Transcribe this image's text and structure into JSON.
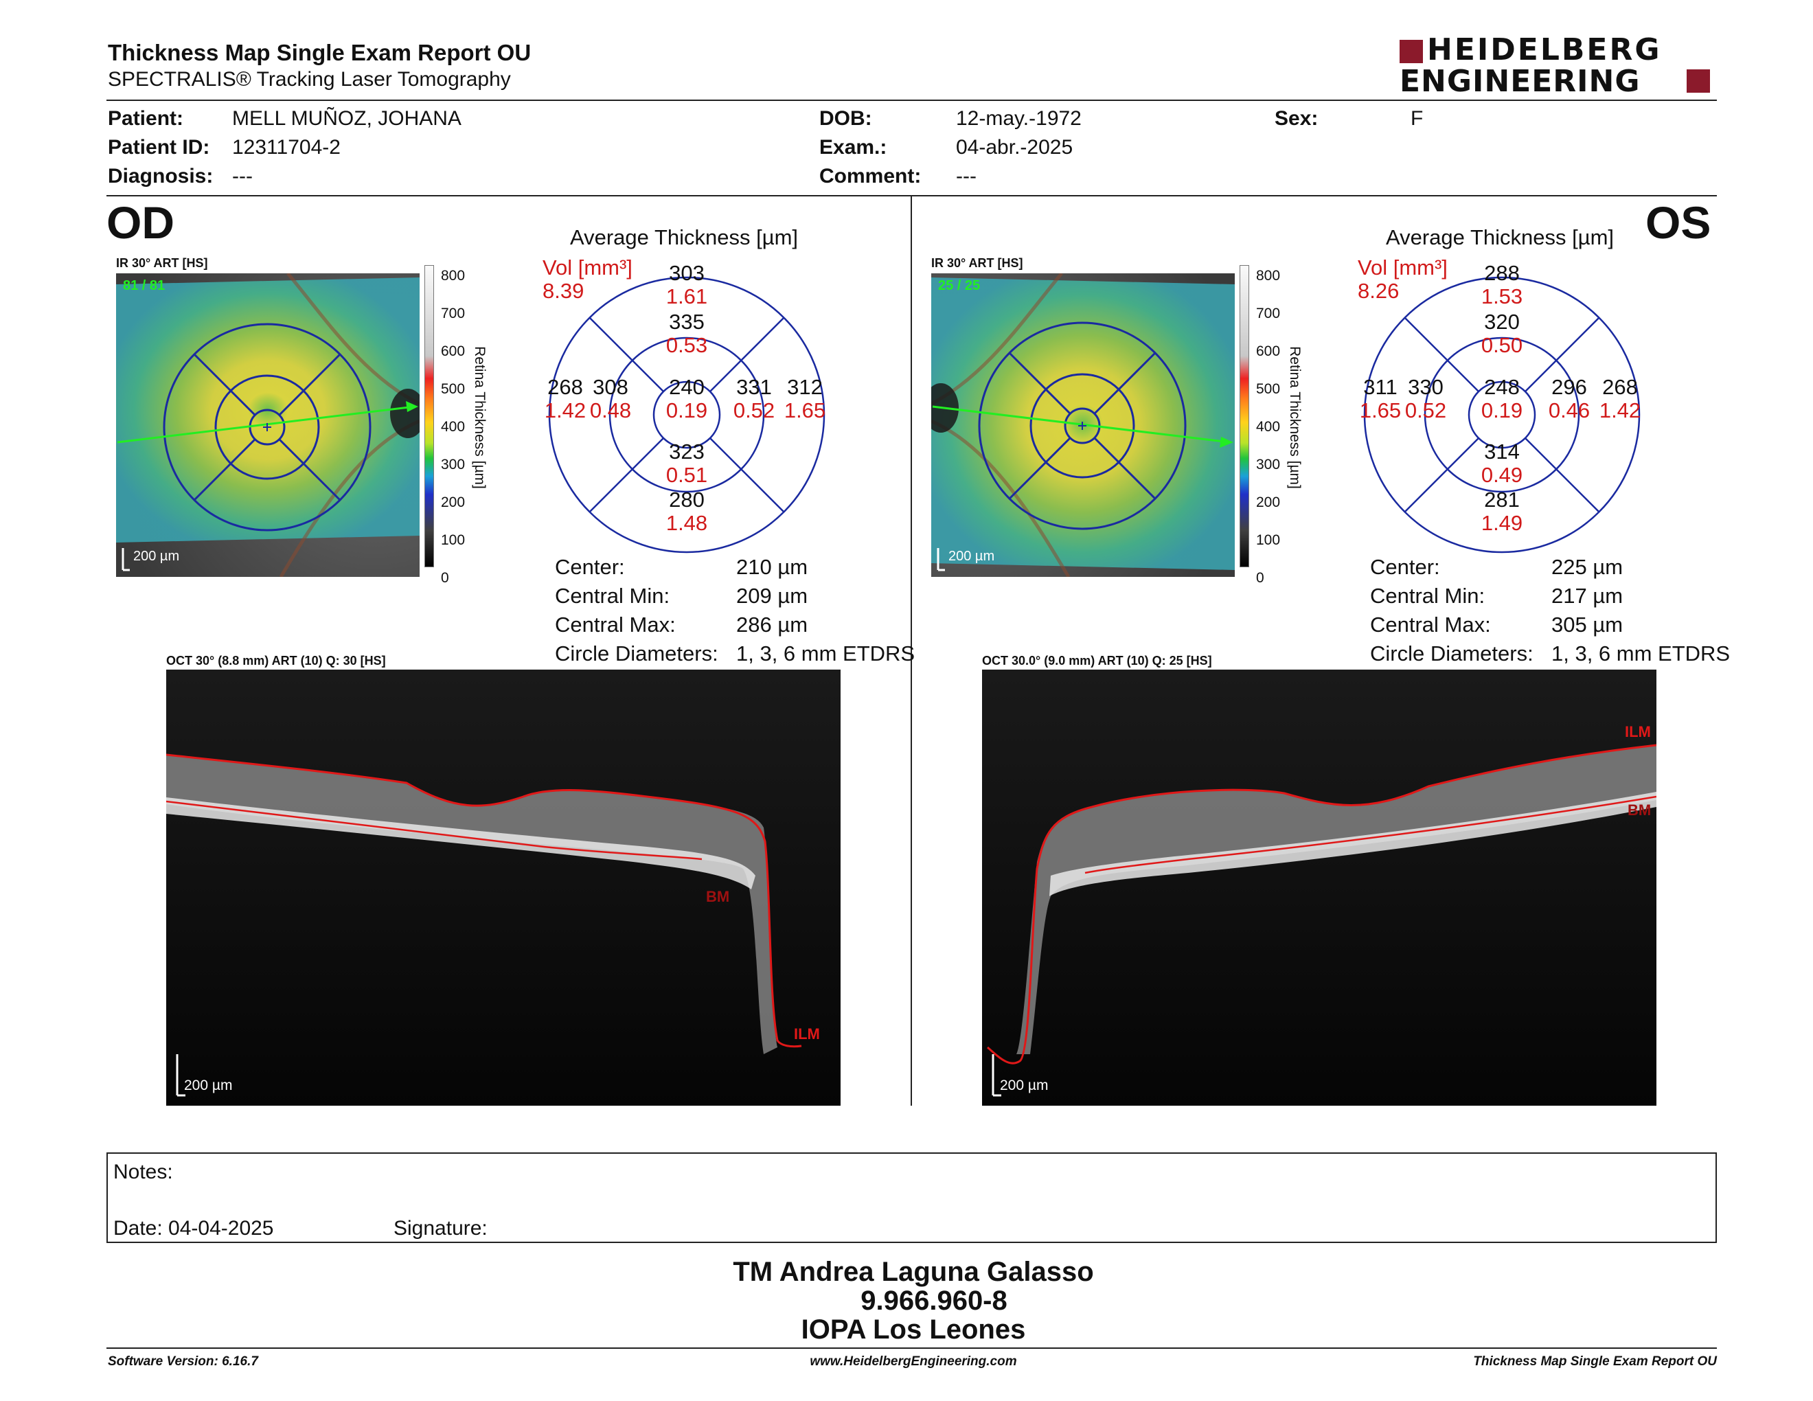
{
  "header": {
    "title": "Thickness Map Single Exam Report OU",
    "subtitle": "SPECTRALIS® Tracking Laser Tomography",
    "logo_line1": "HEIDELBERG",
    "logo_line2": "ENGINEERING",
    "brand_color": "#8b1a2b"
  },
  "patient": {
    "patient_label": "Patient:",
    "patient_value": "MELL MUÑOZ, JOHANA",
    "id_label": "Patient ID:",
    "id_value": "12311704-2",
    "diagnosis_label": "Diagnosis:",
    "diagnosis_value": "---",
    "dob_label": "DOB:",
    "dob_value": "12-may.-1972",
    "exam_label": "Exam.:",
    "exam_value": "04-abr.-2025",
    "comment_label": "Comment:",
    "comment_value": "---",
    "sex_label": "Sex:",
    "sex_value": "F"
  },
  "od": {
    "eye_label": "OD",
    "ir_caption": "IR 30° ART [HS]",
    "quality_text": "81 / 81",
    "map_scale": "200 µm",
    "avg_title": "Average Thickness [µm]",
    "vol_label": "Vol [mm³]",
    "vol_value": "8.39",
    "grid": {
      "center_t": "240",
      "center_v": "0.19",
      "inner_sup_t": "335",
      "inner_sup_v": "0.53",
      "inner_inf_t": "323",
      "inner_inf_v": "0.51",
      "inner_left_t": "308",
      "inner_left_v": "0.48",
      "inner_right_t": "331",
      "inner_right_v": "0.52",
      "outer_sup_t": "303",
      "outer_sup_v": "1.61",
      "outer_inf_t": "280",
      "outer_inf_v": "1.48",
      "outer_left_t": "268",
      "outer_left_v": "1.42",
      "outer_right_t": "312",
      "outer_right_v": "1.65"
    },
    "stats": {
      "center_label": "Center:",
      "center_value": "210 µm",
      "min_label": "Central Min:",
      "min_value": "209 µm",
      "max_label": "Central Max:",
      "max_value": "286 µm",
      "diam_label": "Circle Diameters:",
      "diam_value": "1, 3, 6 mm ETDRS"
    },
    "oct_caption": "OCT 30° (8.8 mm) ART (10) Q: 30 [HS]",
    "oct_scale": "200 µm",
    "ilm_label": "ILM",
    "bm_label": "BM"
  },
  "os": {
    "eye_label": "OS",
    "ir_caption": "IR 30° ART [HS]",
    "quality_text": "25 / 25",
    "map_scale": "200 µm",
    "avg_title": "Average Thickness [µm]",
    "vol_label": "Vol [mm³]",
    "vol_value": "8.26",
    "grid": {
      "center_t": "248",
      "center_v": "0.19",
      "inner_sup_t": "320",
      "inner_sup_v": "0.50",
      "inner_inf_t": "314",
      "inner_inf_v": "0.49",
      "inner_left_t": "330",
      "inner_left_v": "0.52",
      "inner_right_t": "296",
      "inner_right_v": "0.46",
      "outer_sup_t": "288",
      "outer_sup_v": "1.53",
      "outer_inf_t": "281",
      "outer_inf_v": "1.49",
      "outer_left_t": "311",
      "outer_left_v": "1.65",
      "outer_right_t": "268",
      "outer_right_v": "1.42"
    },
    "stats": {
      "center_label": "Center:",
      "center_value": "225 µm",
      "min_label": "Central Min:",
      "min_value": "217 µm",
      "max_label": "Central Max:",
      "max_value": "305 µm",
      "diam_label": "Circle Diameters:",
      "diam_value": "1, 3, 6 mm ETDRS"
    },
    "oct_caption": "OCT 30.0° (9.0 mm) ART (10) Q: 25 [HS]",
    "oct_scale": "200 µm",
    "ilm_label": "ILM",
    "bm_label": "BM"
  },
  "colorbar": {
    "ticks": [
      "800",
      "700",
      "600",
      "500",
      "400",
      "300",
      "200",
      "100",
      "0"
    ],
    "axis_label": "Retina Thickness [µm]"
  },
  "notes": {
    "notes_label": "Notes:",
    "date_label": "Date: 04-04-2025",
    "signature_label": "Signature:"
  },
  "signature_block": {
    "name": "TM Andrea Laguna Galasso",
    "id": "9.966.960-8",
    "org": "IOPA Los Leones"
  },
  "footer": {
    "software": "Software Version: 6.16.7",
    "website": "www.HeidelbergEngineering.com",
    "report": "Thickness Map Single Exam Report OU"
  },
  "colors": {
    "ring_blue": "#1a2aa0",
    "volume_red": "#d11a1a",
    "seg_red": "#e01818",
    "scan_green": "#22ee22"
  }
}
